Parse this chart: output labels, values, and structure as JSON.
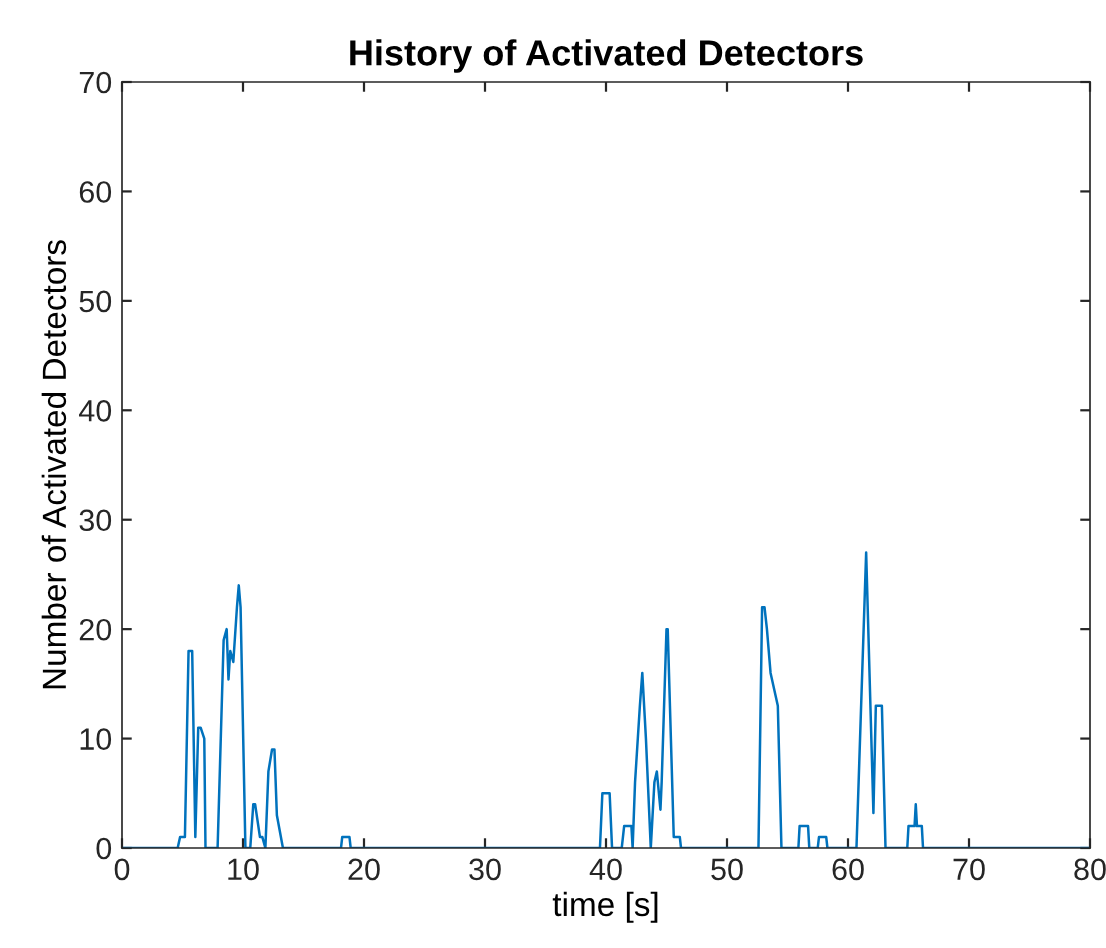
{
  "chart_data": {
    "type": "line",
    "title": "History of Activated Detectors",
    "xlabel": "time [s]",
    "ylabel": "Number of Activated Detectors",
    "xlim": [
      0,
      80
    ],
    "ylim": [
      0,
      70
    ],
    "xticks": [
      0,
      10,
      20,
      30,
      40,
      50,
      60,
      70,
      80
    ],
    "yticks": [
      0,
      10,
      20,
      30,
      40,
      50,
      60,
      70
    ],
    "grid": false,
    "marker": "none",
    "line_style": "solid",
    "series": [
      {
        "color": "#0072bd",
        "x": [
          0,
          4.6,
          4.8,
          5.2,
          5.5,
          5.8,
          6.06,
          6.3,
          6.5,
          6.8,
          6.9,
          7.9,
          8.4,
          8.65,
          8.8,
          8.95,
          9.2,
          9.5,
          9.65,
          9.8,
          10.2,
          10.6,
          10.85,
          11.0,
          11.4,
          11.6,
          11.85,
          12.1,
          12.4,
          12.6,
          12.8,
          13.3,
          18.1,
          18.2,
          18.8,
          18.9,
          39.5,
          39.7,
          40.3,
          40.5,
          41.3,
          41.5,
          42.1,
          42.2,
          42.4,
          42.8,
          43.0,
          43.2,
          43.3,
          43.7,
          44.0,
          44.2,
          44.5,
          44.6,
          45.0,
          45.1,
          45.6,
          46.1,
          46.2,
          52.6,
          52.9,
          53.1,
          53.3,
          53.6,
          54.2,
          54.5,
          55.9,
          56.0,
          56.7,
          56.8,
          57.5,
          57.6,
          58.2,
          58.3,
          60.7,
          61.5,
          62.1,
          62.3,
          62.8,
          63.1,
          64.9,
          65.0,
          65.5,
          65.6,
          65.7,
          66.1,
          66.2,
          80
        ],
        "values": [
          0,
          0,
          1,
          1,
          18,
          18,
          1,
          11,
          11,
          10,
          0,
          0,
          19,
          20,
          15.4,
          18,
          17,
          22,
          24,
          22,
          0,
          0,
          4,
          4,
          1,
          1,
          0,
          7,
          9,
          9,
          3,
          0,
          0,
          1,
          1,
          0,
          0,
          5,
          5,
          0,
          0,
          2,
          2,
          0,
          6,
          13,
          16,
          12,
          10,
          0,
          6,
          7,
          3.5,
          6,
          20,
          20,
          1,
          1,
          0,
          0,
          22,
          22,
          20,
          16,
          13,
          0,
          0,
          2,
          2,
          0,
          0,
          1,
          1,
          0,
          0,
          27,
          3.2,
          13,
          13,
          0,
          0,
          2,
          2,
          4,
          2,
          2,
          0,
          0
        ]
      }
    ]
  }
}
